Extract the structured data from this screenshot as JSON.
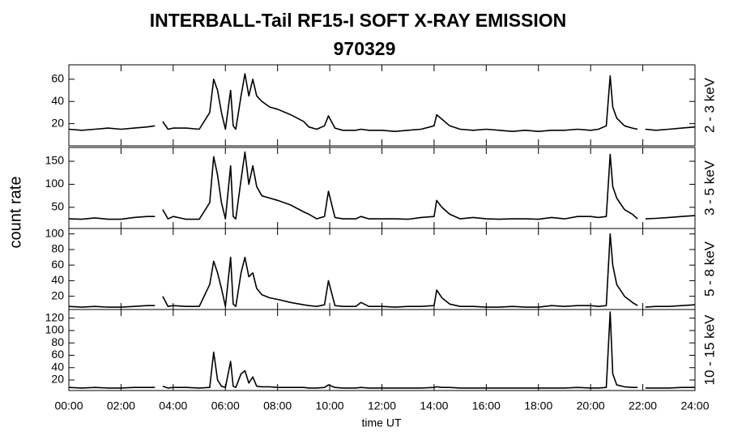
{
  "title": "INTERBALL-Tail RF15-I SOFT X-RAY EMISSION",
  "subtitle": "970329",
  "ylabel": "count rate",
  "xlabel": "time UT",
  "xlim": [
    0,
    24
  ],
  "xticks": [
    {
      "value": 0,
      "label": "00:00"
    },
    {
      "value": 2,
      "label": "02:00"
    },
    {
      "value": 4,
      "label": "04:00"
    },
    {
      "value": 6,
      "label": "06:00"
    },
    {
      "value": 8,
      "label": "08:00"
    },
    {
      "value": 10,
      "label": "10:00"
    },
    {
      "value": 12,
      "label": "12:00"
    },
    {
      "value": 14,
      "label": "14:00"
    },
    {
      "value": 16,
      "label": "16:00"
    },
    {
      "value": 18,
      "label": "18:00"
    },
    {
      "value": 20,
      "label": "20:00"
    },
    {
      "value": 22,
      "label": "22:00"
    },
    {
      "value": 24,
      "label": "24:00"
    }
  ],
  "chart_data": [
    {
      "type": "line",
      "ylabel": "2 - 3 keV",
      "color": "#000000",
      "ylim": [
        0,
        73
      ],
      "yticks": [
        20,
        40,
        60
      ],
      "x": [
        0,
        0.5,
        1,
        1.5,
        2,
        2.5,
        3,
        3.3,
        3.45,
        3.6,
        3.8,
        4,
        4.5,
        5,
        5.4,
        5.55,
        5.7,
        5.85,
        6,
        6.2,
        6.3,
        6.4,
        6.6,
        6.75,
        6.9,
        7.05,
        7.2,
        7.4,
        7.7,
        8,
        8.5,
        9,
        9.2,
        9.5,
        9.8,
        9.95,
        10.2,
        10.5,
        11,
        11.2,
        11.5,
        12,
        12.5,
        13,
        13.5,
        14,
        14.1,
        14.3,
        14.6,
        15,
        15.5,
        16,
        16.5,
        17,
        17.5,
        18,
        18.5,
        19,
        19.5,
        20,
        20.3,
        20.6,
        20.75,
        20.85,
        21,
        21.3,
        21.6,
        21.8,
        21.95,
        22.1,
        22.5,
        23,
        23.5,
        24
      ],
      "values": [
        15,
        14,
        15,
        16,
        15,
        16,
        17,
        18,
        null,
        22,
        15,
        16,
        16,
        15,
        30,
        60,
        50,
        30,
        15,
        50,
        18,
        15,
        45,
        65,
        45,
        60,
        45,
        40,
        35,
        33,
        28,
        22,
        17,
        15,
        18,
        27,
        16,
        14,
        14,
        15,
        14,
        14,
        13,
        14,
        15,
        18,
        28,
        24,
        18,
        15,
        14,
        15,
        14,
        13,
        14,
        13,
        14,
        14,
        15,
        14,
        15,
        18,
        63,
        35,
        25,
        18,
        16,
        15,
        null,
        15,
        14,
        15,
        16,
        17
      ]
    },
    {
      "type": "line",
      "ylabel": "3 - 5 keV",
      "color": "#000000",
      "ylim": [
        4,
        180
      ],
      "yticks": [
        50,
        100,
        150
      ],
      "x": [
        0,
        0.5,
        1,
        1.5,
        2,
        2.5,
        3,
        3.3,
        3.45,
        3.6,
        3.8,
        4,
        4.5,
        5,
        5.4,
        5.55,
        5.7,
        5.85,
        6,
        6.2,
        6.3,
        6.4,
        6.6,
        6.75,
        6.9,
        7.05,
        7.2,
        7.4,
        7.7,
        8,
        8.5,
        9,
        9.2,
        9.5,
        9.8,
        9.95,
        10.2,
        10.5,
        11,
        11.2,
        11.5,
        12,
        12.5,
        13,
        13.5,
        14,
        14.1,
        14.3,
        14.6,
        15,
        15.5,
        16,
        16.5,
        17,
        17.5,
        18,
        18.5,
        19,
        19.5,
        20,
        20.3,
        20.6,
        20.75,
        20.85,
        21,
        21.3,
        21.6,
        21.8,
        21.95,
        22.1,
        22.5,
        23,
        23.5,
        24
      ],
      "values": [
        25,
        24,
        27,
        24,
        24,
        28,
        30,
        30,
        null,
        45,
        25,
        30,
        24,
        24,
        60,
        160,
        120,
        60,
        25,
        140,
        30,
        25,
        110,
        170,
        100,
        140,
        95,
        75,
        70,
        65,
        55,
        40,
        35,
        25,
        30,
        85,
        28,
        25,
        25,
        30,
        25,
        25,
        25,
        24,
        28,
        30,
        65,
        50,
        35,
        25,
        28,
        25,
        24,
        25,
        25,
        24,
        28,
        25,
        30,
        30,
        28,
        30,
        165,
        95,
        70,
        45,
        35,
        25,
        null,
        25,
        26,
        28,
        30,
        32
      ]
    },
    {
      "type": "line",
      "ylabel": "5 - 8 keV",
      "color": "#000000",
      "ylim": [
        3,
        107
      ],
      "yticks": [
        20,
        40,
        60,
        80,
        100
      ],
      "x": [
        0,
        0.5,
        1,
        1.5,
        2,
        2.5,
        3,
        3.3,
        3.45,
        3.6,
        3.8,
        4,
        4.5,
        5,
        5.4,
        5.55,
        5.7,
        5.85,
        6,
        6.2,
        6.3,
        6.4,
        6.6,
        6.75,
        6.9,
        7.05,
        7.2,
        7.4,
        7.7,
        8,
        8.5,
        9,
        9.2,
        9.5,
        9.8,
        9.95,
        10.2,
        10.5,
        11,
        11.2,
        11.5,
        12,
        12.5,
        13,
        13.5,
        14,
        14.1,
        14.3,
        14.6,
        15,
        15.5,
        16,
        16.5,
        17,
        17.5,
        18,
        18.5,
        19,
        19.5,
        20,
        20.3,
        20.6,
        20.75,
        20.85,
        21,
        21.3,
        21.6,
        21.8,
        21.95,
        22.1,
        22.5,
        23,
        23.5,
        24
      ],
      "values": [
        7,
        6,
        7,
        6,
        6,
        7,
        8,
        8,
        null,
        20,
        7,
        8,
        7,
        7,
        35,
        65,
        50,
        30,
        7,
        70,
        10,
        7,
        50,
        70,
        45,
        50,
        30,
        22,
        18,
        16,
        12,
        9,
        8,
        7,
        9,
        40,
        8,
        7,
        7,
        12,
        7,
        7,
        6,
        7,
        7,
        8,
        28,
        18,
        10,
        7,
        7,
        6,
        6,
        7,
        6,
        6,
        8,
        7,
        8,
        8,
        7,
        8,
        100,
        60,
        35,
        20,
        12,
        8,
        null,
        6,
        7,
        7,
        8,
        9
      ]
    },
    {
      "type": "line",
      "ylabel": "10 - 15 keV",
      "color": "#000000",
      "ylim": [
        3,
        134
      ],
      "yticks": [
        20,
        40,
        60,
        80,
        100,
        120
      ],
      "x": [
        0,
        0.5,
        1,
        1.5,
        2,
        2.5,
        3,
        3.3,
        3.45,
        3.6,
        3.8,
        4,
        4.5,
        5,
        5.4,
        5.55,
        5.7,
        5.85,
        6,
        6.2,
        6.3,
        6.4,
        6.6,
        6.75,
        6.9,
        7.05,
        7.2,
        7.4,
        7.7,
        8,
        8.5,
        9,
        9.2,
        9.5,
        9.8,
        9.95,
        10.2,
        10.5,
        11,
        11.2,
        11.5,
        12,
        12.5,
        13,
        13.5,
        14,
        14.1,
        14.3,
        14.6,
        15,
        15.5,
        16,
        16.5,
        17,
        17.5,
        18,
        18.5,
        19,
        19.5,
        20,
        20.3,
        20.6,
        20.75,
        20.85,
        21,
        21.3,
        21.6,
        21.8,
        21.95,
        22.1,
        22.5,
        23,
        23.5,
        24
      ],
      "values": [
        8,
        7,
        8,
        7,
        7,
        8,
        8,
        8,
        null,
        10,
        7,
        8,
        8,
        7,
        8,
        65,
        20,
        10,
        8,
        50,
        10,
        8,
        30,
        35,
        15,
        25,
        10,
        9,
        9,
        8,
        8,
        8,
        7,
        7,
        8,
        12,
        8,
        7,
        7,
        8,
        7,
        7,
        7,
        7,
        7,
        8,
        9,
        8,
        8,
        7,
        7,
        7,
        7,
        7,
        7,
        7,
        7,
        7,
        8,
        7,
        7,
        8,
        130,
        30,
        12,
        9,
        8,
        8,
        null,
        7,
        7,
        7,
        8,
        8
      ]
    }
  ]
}
